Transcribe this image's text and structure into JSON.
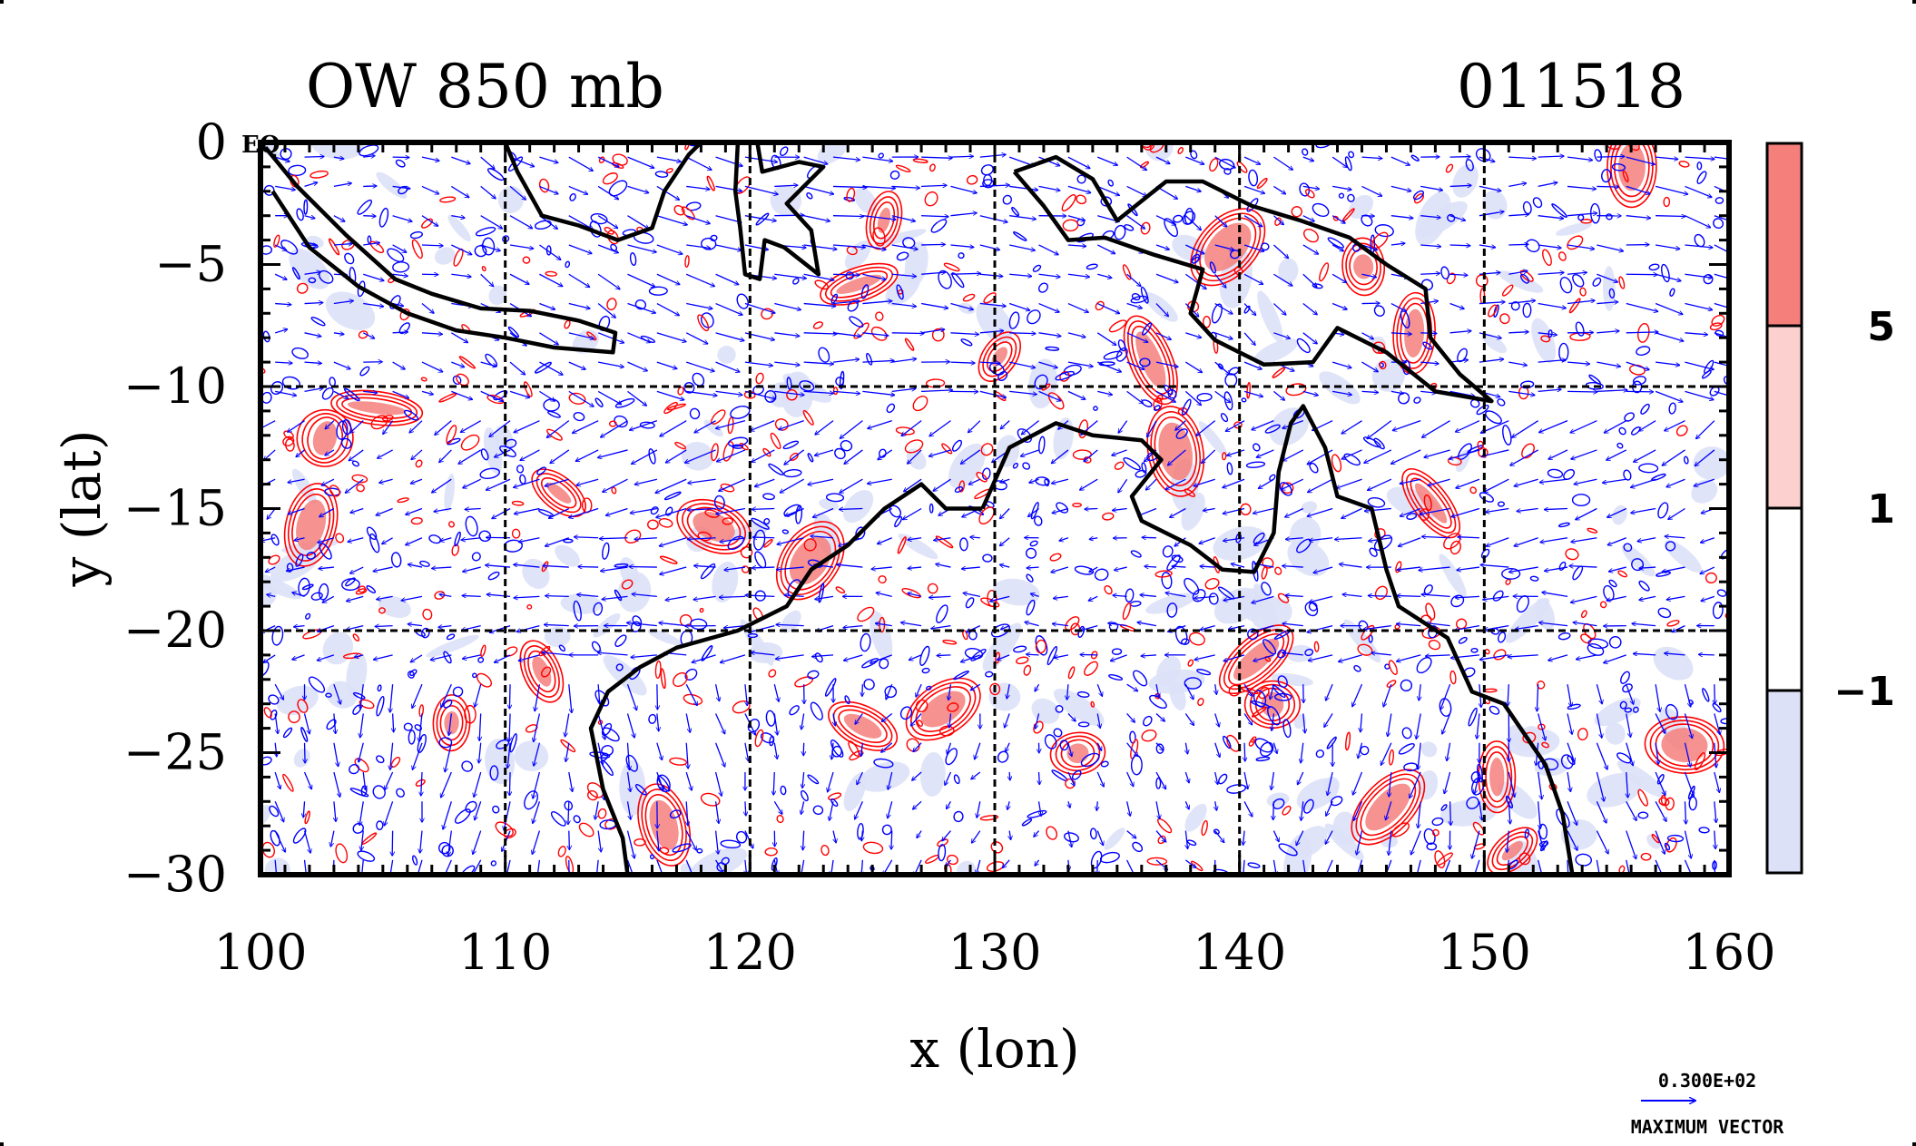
{
  "chart_data": {
    "type": "heatmap",
    "title_left": "OW 850 mb",
    "title_right": "011518",
    "corner_label": "EQ",
    "xlabel": "x (lon)",
    "ylabel": "y (lat)",
    "xlim": [
      100,
      160
    ],
    "ylim": [
      -30,
      0
    ],
    "x_ticks": [
      100,
      110,
      120,
      130,
      140,
      150,
      160
    ],
    "y_ticks": [
      0,
      -5,
      -10,
      -15,
      -20,
      -25,
      -30
    ],
    "x_tick_labels": [
      "100",
      "110",
      "120",
      "130",
      "140",
      "150",
      "160"
    ],
    "y_tick_labels": [
      "0",
      "−5",
      "−10",
      "−15",
      "−20",
      "−25",
      "−30"
    ],
    "grid_lon": [
      110,
      120,
      130,
      140,
      150
    ],
    "grid_lat": [
      -10,
      -20
    ],
    "colorbar": {
      "labels": [
        "5",
        "1",
        "−1"
      ],
      "levels": [
        5,
        1,
        -1
      ],
      "colors": [
        "#f57f7b",
        "#fbd0cf",
        "#ffffff",
        "#dde1f7"
      ]
    },
    "contour_colors": {
      "positive": "#ff0000",
      "negative": "#0000ff",
      "coast": "#000000"
    },
    "vector_legend": {
      "value": "0.300E+02",
      "label": "MAXIMUM VECTOR",
      "color": "#0000ff"
    },
    "coastlines": [
      {
        "name": "sumatra-java",
        "points": [
          [
            100.2,
            -0.2
          ],
          [
            101.5,
            -1.8
          ],
          [
            103.5,
            -3.8
          ],
          [
            105.5,
            -5.6
          ],
          [
            107,
            -6.2
          ],
          [
            109,
            -6.8
          ],
          [
            111,
            -6.9
          ],
          [
            113,
            -7.3
          ],
          [
            114.5,
            -7.8
          ],
          [
            114.4,
            -8.6
          ],
          [
            112,
            -8.4
          ],
          [
            110,
            -8.0
          ],
          [
            108,
            -7.7
          ],
          [
            106,
            -7.0
          ],
          [
            104,
            -5.9
          ],
          [
            102,
            -4.3
          ],
          [
            100.5,
            -2.0
          ]
        ]
      },
      {
        "name": "borneo-south",
        "points": [
          [
            110,
            0
          ],
          [
            110.5,
            -1.2
          ],
          [
            111.5,
            -3.0
          ],
          [
            113,
            -3.4
          ],
          [
            114.6,
            -4.0
          ],
          [
            116,
            -3.5
          ],
          [
            116.5,
            -2.0
          ],
          [
            117.5,
            -0.5
          ],
          [
            118,
            0
          ]
        ]
      },
      {
        "name": "sulawesi",
        "points": [
          [
            119.5,
            0
          ],
          [
            119.4,
            -2.0
          ],
          [
            119.6,
            -3.5
          ],
          [
            119.8,
            -5.4
          ],
          [
            120.4,
            -5.6
          ],
          [
            120.6,
            -4.0
          ],
          [
            121.4,
            -4.3
          ],
          [
            122.8,
            -5.4
          ],
          [
            122.5,
            -3.6
          ],
          [
            121.5,
            -2.5
          ],
          [
            123,
            -1.0
          ],
          [
            122,
            -0.8
          ],
          [
            120.5,
            -1.2
          ],
          [
            120.3,
            0
          ]
        ]
      },
      {
        "name": "new-guinea",
        "points": [
          [
            130.8,
            -1.2
          ],
          [
            132.5,
            -0.6
          ],
          [
            134,
            -1.5
          ],
          [
            135,
            -3.2
          ],
          [
            137,
            -1.6
          ],
          [
            138.5,
            -1.6
          ],
          [
            140.5,
            -2.6
          ],
          [
            142.5,
            -3.2
          ],
          [
            144.5,
            -3.9
          ],
          [
            146,
            -5.0
          ],
          [
            147.6,
            -6.0
          ],
          [
            147.8,
            -8.0
          ],
          [
            149,
            -9.5
          ],
          [
            150.3,
            -10.6
          ],
          [
            148,
            -10.2
          ],
          [
            146,
            -8.6
          ],
          [
            144,
            -7.6
          ],
          [
            143,
            -9.0
          ],
          [
            141,
            -9.1
          ],
          [
            139,
            -8.1
          ],
          [
            138,
            -7.0
          ],
          [
            138.5,
            -5.2
          ],
          [
            136.5,
            -4.6
          ],
          [
            134.5,
            -3.9
          ],
          [
            133,
            -4.0
          ],
          [
            132,
            -2.6
          ],
          [
            130.8,
            -1.2
          ]
        ]
      },
      {
        "name": "australia",
        "points": [
          [
            129.5,
            -15.0
          ],
          [
            130.6,
            -12.5
          ],
          [
            132.5,
            -11.5
          ],
          [
            134,
            -12.0
          ],
          [
            136,
            -12.2
          ],
          [
            136.8,
            -13.0
          ],
          [
            135.6,
            -14.5
          ],
          [
            136,
            -15.5
          ],
          [
            138,
            -16.5
          ],
          [
            139.3,
            -17.5
          ],
          [
            140.6,
            -17.6
          ],
          [
            141.4,
            -16.0
          ],
          [
            141.6,
            -13.5
          ],
          [
            142.1,
            -11.5
          ],
          [
            142.6,
            -10.8
          ],
          [
            143.5,
            -12.5
          ],
          [
            144,
            -14.5
          ],
          [
            145.4,
            -15.0
          ],
          [
            146,
            -17.5
          ],
          [
            146.5,
            -19.0
          ],
          [
            148.5,
            -20.3
          ],
          [
            149.5,
            -22.5
          ],
          [
            150.8,
            -23.0
          ],
          [
            152.5,
            -25.5
          ],
          [
            153.2,
            -27.5
          ],
          [
            153.6,
            -30.0
          ]
        ]
      },
      {
        "name": "australia-west",
        "points": [
          [
            129.5,
            -15.0
          ],
          [
            128,
            -15.0
          ],
          [
            127,
            -14.0
          ],
          [
            125.5,
            -15.0
          ],
          [
            124,
            -16.5
          ],
          [
            122.5,
            -17.5
          ],
          [
            121.5,
            -19.0
          ],
          [
            119.5,
            -20.0
          ],
          [
            117,
            -20.7
          ],
          [
            115.5,
            -21.5
          ],
          [
            114.2,
            -22.5
          ],
          [
            113.5,
            -24.0
          ],
          [
            114,
            -26.5
          ],
          [
            114.8,
            -28.5
          ],
          [
            115,
            -30.0
          ]
        ]
      }
    ]
  }
}
